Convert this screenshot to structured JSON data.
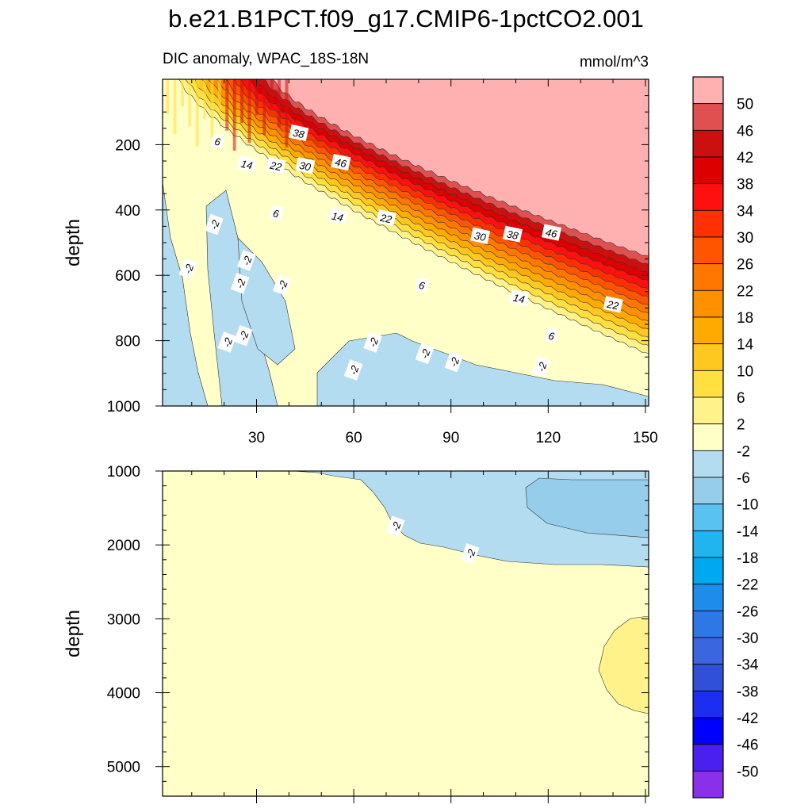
{
  "chart_data": {
    "title": "b.e21.B1PCT.f09_g17.CMIP6-1pctCO2.001",
    "type": "contour",
    "colorbar": {
      "units": "mmol/m^3",
      "levels": [
        50,
        46,
        42,
        38,
        34,
        30,
        26,
        22,
        18,
        14,
        10,
        6,
        2,
        -2,
        -6,
        -10,
        -14,
        -18,
        -22,
        -26,
        -30,
        -34,
        -38,
        -42,
        -46,
        -50
      ],
      "colors": [
        "#FFB0B0",
        "#E05050",
        "#CC1010",
        "#DD0000",
        "#FF1010",
        "#FF3000",
        "#FF5500",
        "#FF7700",
        "#FF9000",
        "#FFAA00",
        "#FFC820",
        "#FFE040",
        "#FFF28A",
        "#FFFFC8",
        "#B4DCF0",
        "#96CDEB",
        "#5AC2F0",
        "#20B4F0",
        "#00A8F0",
        "#1E8CEB",
        "#2E78E6",
        "#3A66E0",
        "#3050D8",
        "#1E2EF0",
        "#0000FF",
        "#4A20F0",
        "#8A30E8"
      ]
    },
    "panels": [
      {
        "name": "upper",
        "subtitle_left": "DIC anomaly, WPAC_18S-18N",
        "subtitle_right": "mmol/m^3",
        "ylabel": "depth",
        "xlim": [
          1,
          151
        ],
        "ylim": [
          0,
          1000
        ],
        "y_inverted": true,
        "xticks": [
          30,
          60,
          90,
          120,
          150
        ],
        "yticks": [
          200,
          400,
          600,
          800,
          1000
        ],
        "contour_labels": [
          {
            "text": "6",
            "x": 18,
            "y": 190
          },
          {
            "text": "38",
            "x": 43,
            "y": 165
          },
          {
            "text": "14",
            "x": 27,
            "y": 260
          },
          {
            "text": "22",
            "x": 36,
            "y": 265
          },
          {
            "text": "30",
            "x": 45,
            "y": 265
          },
          {
            "text": "46",
            "x": 56,
            "y": 255
          },
          {
            "text": "-2",
            "x": 17,
            "y": 445
          },
          {
            "text": "6",
            "x": 36,
            "y": 410
          },
          {
            "text": "14",
            "x": 55,
            "y": 420
          },
          {
            "text": "22",
            "x": 70,
            "y": 425
          },
          {
            "text": "30",
            "x": 99,
            "y": 480
          },
          {
            "text": "38",
            "x": 109,
            "y": 475
          },
          {
            "text": "46",
            "x": 121,
            "y": 470
          },
          {
            "text": "-2",
            "x": 9,
            "y": 580
          },
          {
            "text": "-2",
            "x": 27,
            "y": 555
          },
          {
            "text": "-2",
            "x": 25,
            "y": 625
          },
          {
            "text": "-2",
            "x": 38,
            "y": 630
          },
          {
            "text": "6",
            "x": 81,
            "y": 630
          },
          {
            "text": "14",
            "x": 111,
            "y": 670
          },
          {
            "text": "22",
            "x": 140,
            "y": 690
          },
          {
            "text": "-2",
            "x": 26,
            "y": 785
          },
          {
            "text": "-2",
            "x": 21,
            "y": 805
          },
          {
            "text": "6",
            "x": 121,
            "y": 785
          },
          {
            "text": "-2",
            "x": 66,
            "y": 805
          },
          {
            "text": "-2",
            "x": 82,
            "y": 840
          },
          {
            "text": "-2",
            "x": 91,
            "y": 865
          },
          {
            "text": "-2",
            "x": 118,
            "y": 880
          },
          {
            "text": "-2",
            "x": 60,
            "y": 890
          }
        ]
      },
      {
        "name": "lower",
        "ylabel": "depth",
        "xlim": [
          1,
          151
        ],
        "ylim": [
          1000,
          5400
        ],
        "y_inverted": true,
        "yticks": [
          1000,
          2000,
          3000,
          4000,
          5000
        ],
        "contour_labels": [
          {
            "text": "-2",
            "x": 73,
            "y": 1750
          },
          {
            "text": "-2",
            "x": 96,
            "y": 2120
          }
        ]
      }
    ]
  }
}
